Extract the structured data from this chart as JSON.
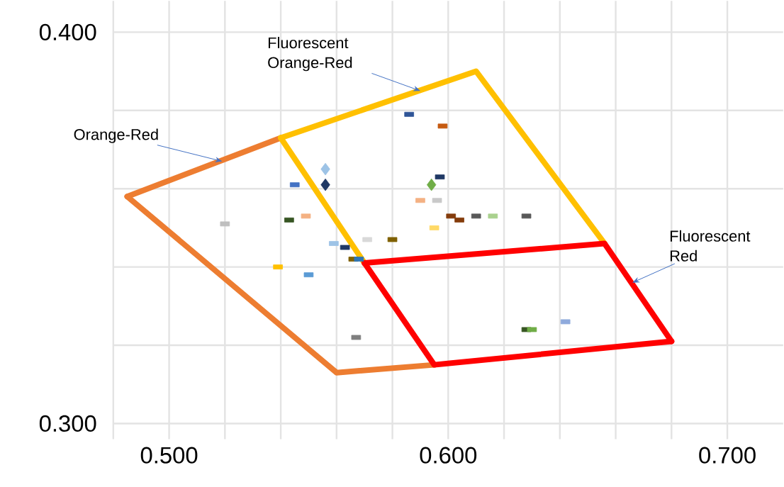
{
  "chart_data": {
    "type": "scatter",
    "xlim": [
      0.48,
      0.72
    ],
    "ylim": [
      0.296,
      0.408
    ],
    "xticks": [
      {
        "value": 0.48,
        "label": null
      },
      {
        "value": 0.5,
        "label": "0.500"
      },
      {
        "value": 0.52,
        "label": null
      },
      {
        "value": 0.54,
        "label": null
      },
      {
        "value": 0.56,
        "label": null
      },
      {
        "value": 0.58,
        "label": null
      },
      {
        "value": 0.6,
        "label": "0.600"
      },
      {
        "value": 0.62,
        "label": null
      },
      {
        "value": 0.64,
        "label": null
      },
      {
        "value": 0.66,
        "label": null
      },
      {
        "value": 0.68,
        "label": null
      },
      {
        "value": 0.7,
        "label": "0.700"
      }
    ],
    "yticks": [
      {
        "value": 0.3,
        "label": "0.300"
      },
      {
        "value": 0.32,
        "label": null
      },
      {
        "value": 0.34,
        "label": null
      },
      {
        "value": 0.36,
        "label": null
      },
      {
        "value": 0.38,
        "label": null
      },
      {
        "value": 0.4,
        "label": "0.400"
      }
    ],
    "grid": true,
    "series": [
      {
        "type": "line",
        "color": "#ed7d31",
        "x": [
          0.485,
          0.54
        ],
        "values": [
          0.358,
          0.373
        ]
      },
      {
        "type": "line",
        "color": "#ed7d31",
        "x": [
          0.485,
          0.56,
          0.595
        ],
        "values": [
          0.358,
          0.313,
          0.315
        ]
      },
      {
        "type": "line",
        "color": "#ffc000",
        "x": [
          0.54,
          0.61,
          0.656
        ],
        "values": [
          0.373,
          0.39,
          0.346
        ]
      },
      {
        "type": "line",
        "color": "#ffc000",
        "x": [
          0.54,
          0.57
        ],
        "values": [
          0.373,
          0.341
        ]
      },
      {
        "type": "line",
        "color": "#ff0000",
        "x": [
          0.57,
          0.656,
          0.68
        ],
        "values": [
          0.341,
          0.346,
          0.321
        ]
      },
      {
        "type": "line",
        "color": "#ff0000",
        "x": [
          0.57,
          0.595,
          0.68
        ],
        "values": [
          0.341,
          0.315,
          0.321
        ]
      },
      {
        "marker": "square",
        "x": [
          0.586,
          0.598,
          0.597,
          0.545,
          0.59,
          0.596,
          0.52,
          0.543,
          0.549,
          0.601,
          0.604,
          0.61,
          0.616,
          0.628,
          0.595,
          0.571,
          0.58,
          0.559,
          0.563,
          0.566,
          0.568,
          0.539,
          0.55,
          0.567,
          0.628,
          0.63,
          0.642
        ],
        "values": [
          0.379,
          0.376,
          0.363,
          0.361,
          0.357,
          0.357,
          0.351,
          0.352,
          0.353,
          0.353,
          0.352,
          0.353,
          0.353,
          0.353,
          0.35,
          0.347,
          0.347,
          0.346,
          0.345,
          0.342,
          0.342,
          0.34,
          0.338,
          0.322,
          0.324,
          0.324,
          0.326
        ],
        "colors": [
          "#2f5597",
          "#c55a11",
          "#1f3864",
          "#4472c4",
          "#f4b183",
          "#c9c9c9",
          "#bfbfbf",
          "#375623",
          "#f4b183",
          "#843c0c",
          "#843c0c",
          "#595959",
          "#a9d18e",
          "#595959",
          "#ffd966",
          "#d9d9d9",
          "#7f6000",
          "#9dc3e6",
          "#203864",
          "#7f6000",
          "#2e75b6",
          "#ffc000",
          "#5b9bd5",
          "#7f7f7f",
          "#375623",
          "#70ad47",
          "#8faadc"
        ]
      },
      {
        "marker": "diamond",
        "x": [
          0.556,
          0.556,
          0.594
        ],
        "values": [
          0.365,
          0.361,
          0.361
        ],
        "colors": [
          "#9dc3e6",
          "#1f3864",
          "#70ad47"
        ]
      }
    ],
    "annotations": [
      {
        "text": "Fluorescent Orange-Red",
        "x": 0.59,
        "y": 0.385
      },
      {
        "text": "Orange-Red",
        "x": 0.519,
        "y": 0.367
      },
      {
        "text": "Fluorescent Red",
        "x": 0.666,
        "y": 0.336
      }
    ]
  }
}
